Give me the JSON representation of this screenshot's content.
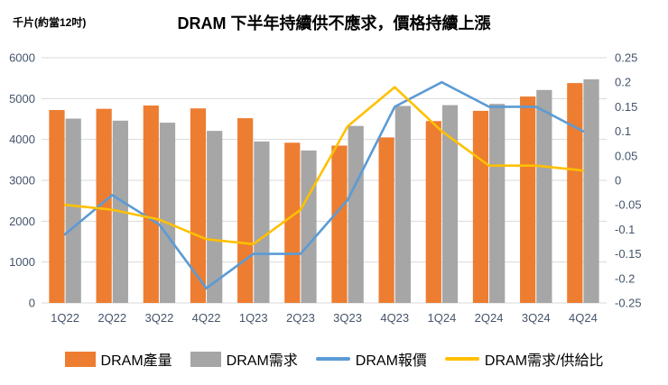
{
  "page": {
    "title": "DRAM 下半年持續供不應求，價格持續上漲",
    "unit_label": "千片(約當12吋)"
  },
  "colors": {
    "production_bar": "#ED7D31",
    "demand_bar": "#A6A6A6",
    "price_line": "#5B9BD5",
    "ratio_line": "#FFC000",
    "gridline": "#D9D9D9",
    "axis_label": "#44546A",
    "title_text": "#000000"
  },
  "legend": {
    "items": [
      {
        "label": "DRAM產量",
        "type": "bar",
        "color_key": "production_bar"
      },
      {
        "label": "DRAM需求",
        "type": "bar",
        "color_key": "demand_bar"
      },
      {
        "label": "DRAM報價",
        "type": "line",
        "color_key": "price_line"
      },
      {
        "label": "DRAM需求/供給比",
        "type": "line",
        "color_key": "ratio_line"
      }
    ]
  },
  "chart_data": {
    "type": "combo-bar-line",
    "title": "DRAM 下半年持續供不應求，價格持續上漲",
    "left_axis_unit": "千片(約當12吋)",
    "categories": [
      "1Q22",
      "2Q22",
      "3Q22",
      "4Q22",
      "1Q23",
      "2Q23",
      "3Q23",
      "4Q23",
      "1Q24",
      "2Q24",
      "3Q24",
      "4Q24"
    ],
    "bar_series": [
      {
        "name": "DRAM產量",
        "axis": "left",
        "values": [
          4720,
          4750,
          4830,
          4760,
          4520,
          3920,
          3850,
          4050,
          4450,
          4700,
          5050,
          5380
        ]
      },
      {
        "name": "DRAM需求",
        "axis": "left",
        "values": [
          4510,
          4460,
          4410,
          4210,
          3950,
          3730,
          4330,
          4820,
          4840,
          4870,
          5210,
          5470
        ]
      }
    ],
    "line_series": [
      {
        "name": "DRAM報價",
        "axis": "right",
        "values": [
          -0.11,
          -0.03,
          -0.09,
          -0.22,
          -0.15,
          -0.15,
          -0.04,
          0.15,
          0.2,
          0.15,
          0.15,
          0.1
        ]
      },
      {
        "name": "DRAM需求/供給比",
        "axis": "right",
        "values": [
          -0.05,
          -0.06,
          -0.08,
          -0.12,
          -0.13,
          -0.06,
          0.11,
          0.19,
          0.1,
          0.03,
          0.03,
          0.02
        ]
      }
    ],
    "left_axis": {
      "min": 0,
      "max": 6000,
      "ticks": [
        0,
        1000,
        2000,
        3000,
        4000,
        5000,
        6000
      ]
    },
    "right_axis": {
      "min": -0.25,
      "max": 0.25,
      "ticks": [
        -0.25,
        -0.2,
        -0.15,
        -0.1,
        -0.05,
        0,
        0.05,
        0.1,
        0.15,
        0.2,
        0.25
      ]
    },
    "grid": true,
    "legend_position": "bottom"
  }
}
